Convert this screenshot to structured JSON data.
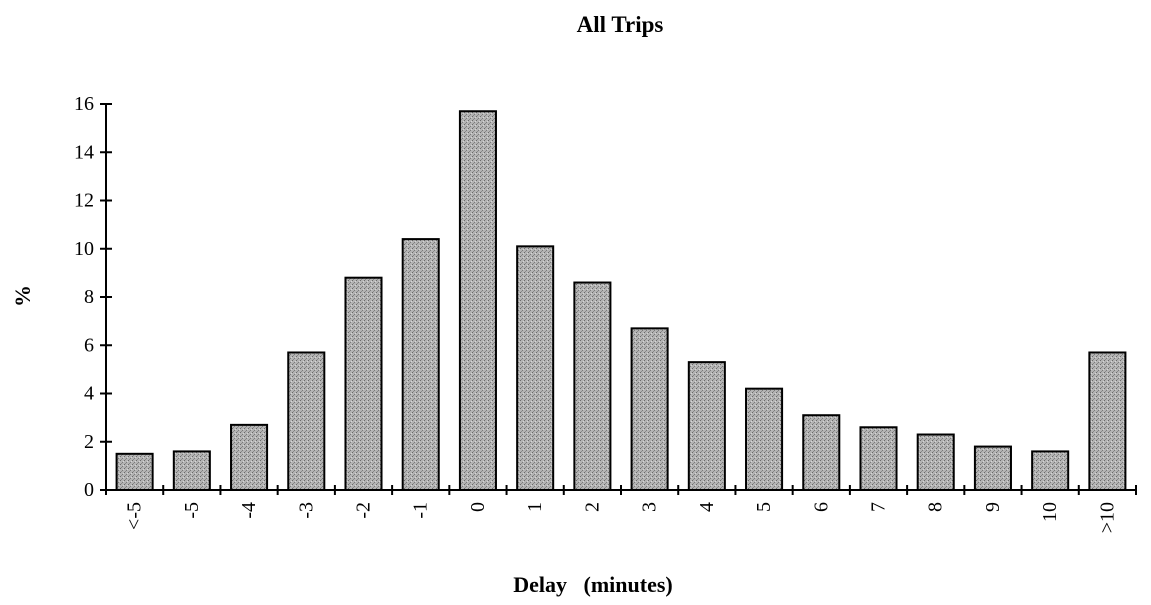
{
  "chart_data": {
    "type": "bar",
    "title": "All Trips",
    "xlabel": "Delay   (minutes)",
    "ylabel": "%",
    "categories": [
      "<-5",
      "-5",
      "-4",
      "-3",
      "-2",
      "-1",
      "0",
      "1",
      "2",
      "3",
      "4",
      "5",
      "6",
      "7",
      "8",
      "9",
      "10",
      ">10"
    ],
    "values": [
      1.5,
      1.6,
      2.7,
      5.7,
      8.8,
      10.4,
      15.7,
      10.1,
      8.6,
      6.7,
      5.3,
      4.2,
      3.1,
      2.6,
      2.3,
      1.8,
      1.6,
      5.7
    ],
    "ylim": [
      0,
      16
    ],
    "yticks": [
      "0",
      "2",
      "4",
      "6",
      "8",
      "10",
      "12",
      "14",
      "16"
    ],
    "grid": false,
    "legend": "none",
    "bar_color": "#a8a8a8"
  }
}
